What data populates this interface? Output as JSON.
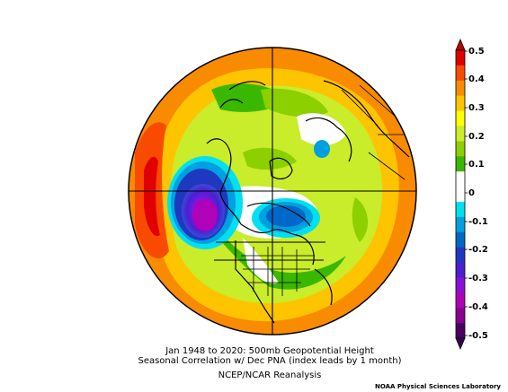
{
  "caption": {
    "line1": "Jan 1948 to 2020: 500mb Geopotential Height",
    "line2": "Seasonal Correlation w/ Dec PNA (index leads by 1 month)",
    "line3": "NCEP/NCAR Reanalysis"
  },
  "credit": "NOAA Physical Sciences Laboratory",
  "colorbar": {
    "ticks": [
      "0.5",
      "0.4",
      "0.3",
      "0.2",
      "0.1",
      "0",
      "-0.1",
      "-0.2",
      "-0.3",
      "-0.4",
      "-0.5"
    ],
    "colors": [
      "#e00000",
      "#f84a00",
      "#f98b00",
      "#ffc400",
      "#ffff00",
      "#c9ec2b",
      "#8cd000",
      "#3ab800",
      "#ffffff",
      "#ffffff",
      "#00e0f0",
      "#00a0e0",
      "#0068c8",
      "#2038c0",
      "#4a20d0",
      "#8a10d8",
      "#b000b8",
      "#8a0090",
      "#4a0060"
    ]
  }
}
